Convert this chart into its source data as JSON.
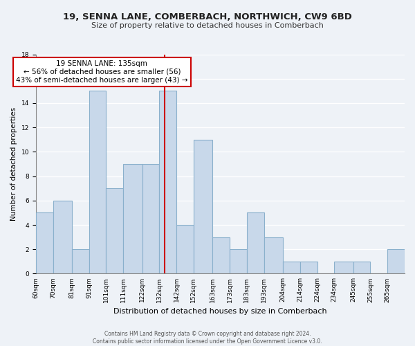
{
  "title1": "19, SENNA LANE, COMBERBACH, NORTHWICH, CW9 6BD",
  "title2": "Size of property relative to detached houses in Comberbach",
  "xlabel": "Distribution of detached houses by size in Comberbach",
  "ylabel": "Number of detached properties",
  "bin_labels": [
    "60sqm",
    "70sqm",
    "81sqm",
    "91sqm",
    "101sqm",
    "111sqm",
    "122sqm",
    "132sqm",
    "142sqm",
    "152sqm",
    "163sqm",
    "173sqm",
    "183sqm",
    "193sqm",
    "204sqm",
    "214sqm",
    "224sqm",
    "234sqm",
    "245sqm",
    "255sqm",
    "265sqm"
  ],
  "bin_edges": [
    60,
    70,
    81,
    91,
    101,
    111,
    122,
    132,
    142,
    152,
    163,
    173,
    183,
    193,
    204,
    214,
    224,
    234,
    245,
    255,
    265,
    275
  ],
  "counts": [
    5,
    6,
    2,
    15,
    7,
    9,
    9,
    15,
    4,
    11,
    3,
    2,
    5,
    3,
    1,
    1,
    0,
    1,
    1,
    0,
    2
  ],
  "bar_color": "#c8d8ea",
  "bar_edgecolor": "#8ab0cc",
  "vline_color": "#cc0000",
  "vline_x": 135,
  "annotation_title": "19 SENNA LANE: 135sqm",
  "annotation_line1": "← 56% of detached houses are smaller (56)",
  "annotation_line2": "43% of semi-detached houses are larger (43) →",
  "annotation_box_edgecolor": "#cc0000",
  "ylim": [
    0,
    18
  ],
  "yticks": [
    0,
    2,
    4,
    6,
    8,
    10,
    12,
    14,
    16,
    18
  ],
  "footer1": "Contains HM Land Registry data © Crown copyright and database right 2024.",
  "footer2": "Contains public sector information licensed under the Open Government Licence v3.0.",
  "background_color": "#eef2f7",
  "grid_color": "#ffffff",
  "title1_fontsize": 9.5,
  "title2_fontsize": 8.0,
  "ylabel_fontsize": 7.5,
  "xlabel_fontsize": 8.0,
  "tick_fontsize": 6.5,
  "footer_fontsize": 5.5,
  "annot_fontsize": 7.5
}
